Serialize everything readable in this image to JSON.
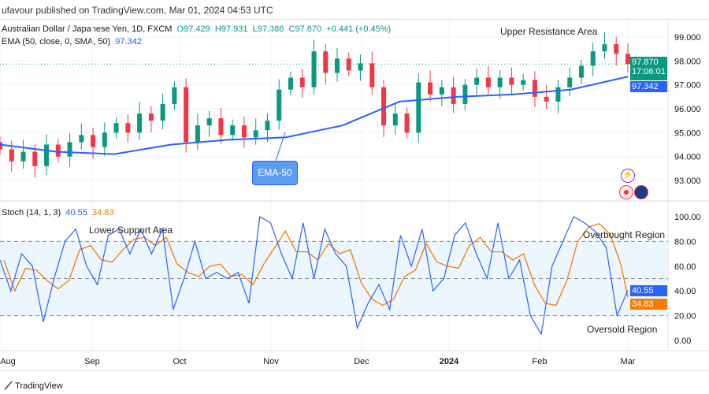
{
  "header": {
    "published": "ufavour published on TradingView.com, Mar 01, 2024 04:53 UTC"
  },
  "legend": {
    "symbol": "Australian Dollar / Japanese Yen, 1D, FXCM",
    "open": "O97.429",
    "high": "H97.931",
    "low": "L97.386",
    "close": "C97.870",
    "change": "+0.441 (+0.45%)",
    "ema_label": "EMA (50, close, 0, SMA, 50)",
    "ema_value": "97.342",
    "stoch_label": "Stoch (14, 1, 3)",
    "stoch_k": "40.55",
    "stoch_d": "34.83"
  },
  "tags": {
    "price": "97.870",
    "countdown": "17:06:01",
    "ema": "97.342",
    "k": "40.55",
    "d": "34.83"
  },
  "annotations": {
    "upper": "Upper Resistance Area",
    "lower": "Lower Support Area",
    "overbought": "Overbought Region",
    "oversold": "Oversold Region",
    "ema_callout": "EMA-50"
  },
  "footer": {
    "brand": "TradingView"
  },
  "colors": {
    "up": "#089981",
    "down": "#f23645",
    "ema": "#2962ff",
    "k": "#2962ff",
    "d": "#f57c00",
    "band": "#e3f2fd"
  },
  "chart_data": [
    {
      "type": "candlestick",
      "symbol": "AUD/JPY",
      "ylim": [
        92.6,
        99.6
      ],
      "y_ticks": [
        "99.000",
        "98.000",
        "97.000",
        "96.000",
        "95.000",
        "94.000",
        "93.000"
      ],
      "x_ticks": [
        "Aug",
        "Sep",
        "Oct",
        "Nov",
        "Dec",
        "2024",
        "Feb",
        "Mar"
      ],
      "closes": [
        94.3,
        93.8,
        94.2,
        93.6,
        94.5,
        94.0,
        94.6,
        94.9,
        94.4,
        95.0,
        95.4,
        95.0,
        95.8,
        95.5,
        96.2,
        96.9,
        94.6,
        95.3,
        95.6,
        94.9,
        95.3,
        94.8,
        95.1,
        95.5,
        96.8,
        97.3,
        96.9,
        98.4,
        97.5,
        98.1,
        97.6,
        97.9,
        96.9,
        95.3,
        95.8,
        95.0,
        97.1,
        96.6,
        96.9,
        96.2,
        97.0,
        97.3,
        96.9,
        97.3,
        97.0,
        97.2,
        96.5,
        96.3,
        96.9,
        97.3,
        97.8,
        98.4,
        98.7,
        98.3,
        97.87
      ],
      "ema50": [
        94.5,
        94.2,
        94.1,
        94.5,
        94.7,
        94.8,
        95.3,
        96.3,
        96.5,
        96.6,
        96.8,
        97.342
      ]
    },
    {
      "type": "line",
      "name": "Stoch (14, 1, 3)",
      "ylim": [
        0,
        100
      ],
      "y_ticks": [
        "100.00",
        "80.00",
        "60.00",
        "40.00",
        "20.00",
        "0.00"
      ],
      "bands": [
        20,
        50,
        80
      ],
      "k": [
        65,
        40,
        70,
        60,
        15,
        50,
        80,
        90,
        60,
        45,
        85,
        90,
        70,
        90,
        70,
        90,
        25,
        50,
        80,
        50,
        55,
        50,
        55,
        30,
        100,
        95,
        70,
        50,
        95,
        50,
        90,
        70,
        60,
        10,
        30,
        45,
        25,
        85,
        60,
        90,
        40,
        50,
        85,
        95,
        70,
        50,
        95,
        50,
        65,
        20,
        5,
        60,
        80,
        100,
        95,
        88,
        75,
        20,
        40.55
      ],
      "d_last": 34.83
    }
  ]
}
